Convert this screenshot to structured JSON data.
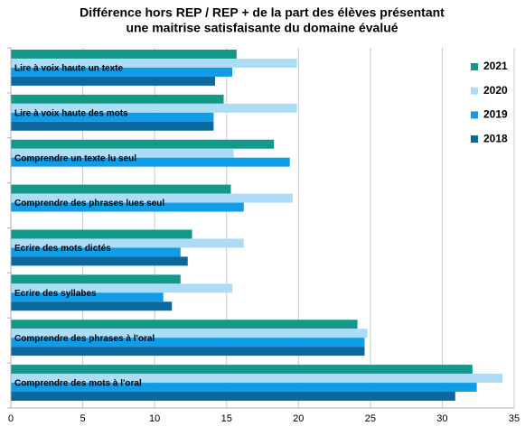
{
  "chart_data": {
    "type": "hbar",
    "title": [
      "Différence hors REP / REP + de la part des élèves présentant",
      "une maitrise satisfaisante du domaine évalué"
    ],
    "categories": [
      "Lire à voix haute un texte",
      "Lire à voix haute des mots",
      "Comprendre un texte lu seul",
      "Comprendre des phrases lues seul",
      "Ecrire des mots dictés",
      "Ecrire des syllabes",
      "Comprendre des phrases à l'oral",
      "Comprendre des mots à l'oral"
    ],
    "series": [
      {
        "name": "2021",
        "color": "#13998a",
        "values": [
          15.7,
          14.8,
          18.3,
          15.3,
          12.6,
          11.8,
          24.1,
          32.1
        ]
      },
      {
        "name": "2020",
        "color": "#acdcf6",
        "values": [
          19.9,
          19.9,
          15.5,
          19.6,
          16.2,
          15.4,
          24.8,
          34.2
        ]
      },
      {
        "name": "2019",
        "color": "#0f9de8",
        "values": [
          15.4,
          14.1,
          19.4,
          16.2,
          11.8,
          10.6,
          24.6,
          32.4
        ]
      },
      {
        "name": "2018",
        "color": "#0b679f",
        "values": [
          14.2,
          14.1,
          null,
          null,
          12.3,
          11.2,
          24.6,
          30.9
        ]
      }
    ],
    "xlim": [
      0,
      35
    ],
    "xticks": [
      0,
      5,
      10,
      15,
      20,
      25,
      30,
      35
    ],
    "grid": true,
    "legend": "right"
  }
}
